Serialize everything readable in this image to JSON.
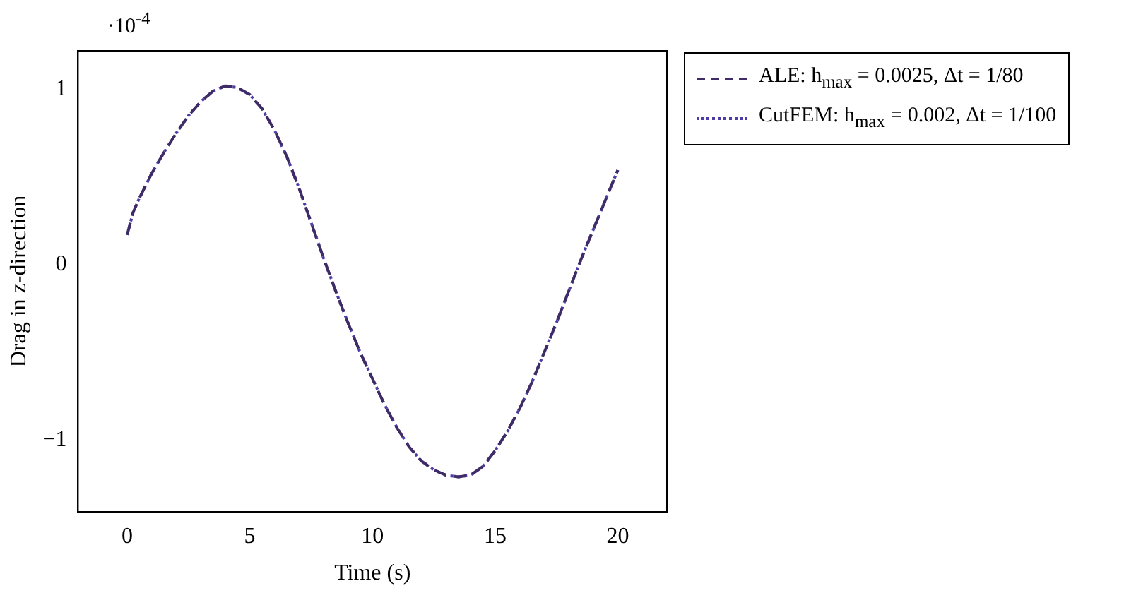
{
  "chart_data": {
    "type": "line",
    "xlabel": "Time (s)",
    "ylabel": "Drag in z-direction",
    "annotations": [
      "·10$^{-4}$"
    ],
    "x": [
      0,
      0.25,
      0.5,
      1,
      1.5,
      2,
      2.5,
      3,
      3.5,
      4,
      4.5,
      5,
      5.5,
      6,
      6.5,
      7,
      7.5,
      8,
      8.5,
      9,
      9.5,
      10,
      10.5,
      11,
      11.5,
      12,
      12.5,
      13,
      13.5,
      14,
      14.5,
      15,
      15.5,
      16,
      16.5,
      17,
      17.5,
      18,
      18.5,
      19,
      19.5,
      20
    ],
    "series": [
      {
        "name": "ALE: h$_{max}$ = 0.0025, Δt = 1/80",
        "color": "#3f2b66",
        "line_style": "dashed",
        "values": [
          0.17,
          0.3,
          0.38,
          0.52,
          0.64,
          0.75,
          0.85,
          0.93,
          0.99,
          1.02,
          1.01,
          0.97,
          0.89,
          0.77,
          0.62,
          0.44,
          0.24,
          0.04,
          -0.15,
          -0.33,
          -0.5,
          -0.65,
          -0.8,
          -0.93,
          -1.04,
          -1.12,
          -1.17,
          -1.2,
          -1.21,
          -1.2,
          -1.15,
          -1.06,
          -0.95,
          -0.82,
          -0.67,
          -0.5,
          -0.33,
          -0.15,
          0.03,
          0.2,
          0.37,
          0.54
        ]
      },
      {
        "name": "CutFEM: h$_{max}$ = 0.002, Δt = 1/100",
        "color": "#4b3ca8",
        "line_style": "dotted",
        "values": [
          0.17,
          0.3,
          0.38,
          0.52,
          0.64,
          0.75,
          0.85,
          0.93,
          0.99,
          1.02,
          1.01,
          0.97,
          0.89,
          0.77,
          0.62,
          0.44,
          0.24,
          0.04,
          -0.15,
          -0.33,
          -0.5,
          -0.65,
          -0.8,
          -0.93,
          -1.04,
          -1.12,
          -1.17,
          -1.2,
          -1.21,
          -1.2,
          -1.15,
          -1.06,
          -0.95,
          -0.82,
          -0.67,
          -0.5,
          -0.33,
          -0.15,
          0.03,
          0.2,
          0.37,
          0.54
        ]
      }
    ],
    "xlim": [
      -2,
      22
    ],
    "xticks": [
      0,
      5,
      10,
      15,
      20
    ],
    "ylim": [
      -1.41,
      1.22
    ],
    "yticks": [
      -1,
      0,
      1
    ],
    "grid": false,
    "legend": "right",
    "marker": "none"
  }
}
